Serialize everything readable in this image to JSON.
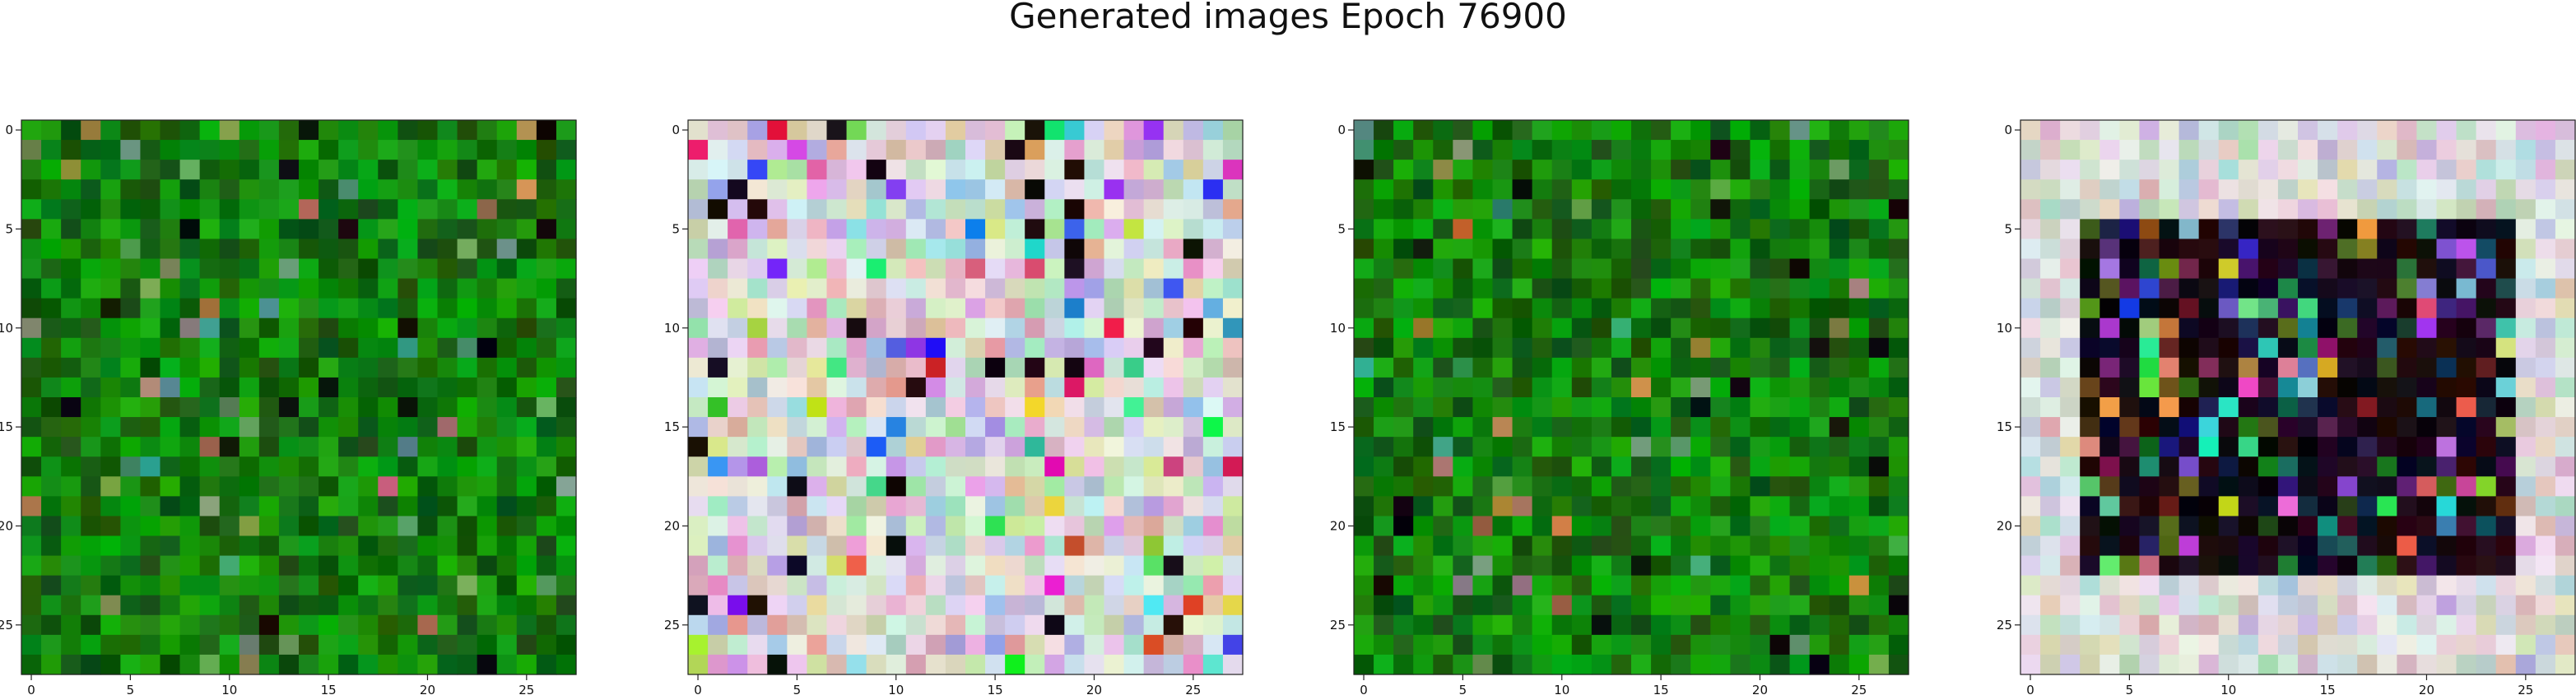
{
  "figure": {
    "title": "Generated images Epoch 76900"
  },
  "chart_data": [
    {
      "type": "heatmap",
      "palette": "green-noise",
      "grid_size": 28,
      "xlim": [
        0,
        27
      ],
      "ylim": [
        27,
        0
      ],
      "x_ticks": [
        0,
        5,
        10,
        15,
        20,
        25
      ],
      "y_ticks": [
        0,
        5,
        10,
        15,
        20,
        25
      ],
      "x_tick_labels": [
        "0",
        "5",
        "10",
        "15",
        "20",
        "25"
      ],
      "y_tick_labels": [
        "0",
        "5",
        "10",
        "15",
        "20",
        "25"
      ],
      "title": "",
      "xlabel": "",
      "ylabel": ""
    },
    {
      "type": "heatmap",
      "palette": "pastel-noise",
      "grid_size": 28,
      "xlim": [
        0,
        27
      ],
      "ylim": [
        27,
        0
      ],
      "x_ticks": [
        0,
        5,
        10,
        15,
        20,
        25
      ],
      "y_ticks": [
        0,
        5,
        10,
        15,
        20,
        25
      ],
      "x_tick_labels": [
        "0",
        "5",
        "10",
        "15",
        "20",
        "25"
      ],
      "y_tick_labels": [
        "0",
        "5",
        "10",
        "15",
        "20",
        "25"
      ],
      "title": "",
      "xlabel": "",
      "ylabel": ""
    },
    {
      "type": "heatmap",
      "palette": "green-noise",
      "grid_size": 28,
      "xlim": [
        0,
        27
      ],
      "ylim": [
        27,
        0
      ],
      "x_ticks": [
        0,
        5,
        10,
        15,
        20,
        25
      ],
      "y_ticks": [
        0,
        5,
        10,
        15,
        20,
        25
      ],
      "x_tick_labels": [
        "0",
        "5",
        "10",
        "15",
        "20",
        "25"
      ],
      "y_tick_labels": [
        "0",
        "5",
        "10",
        "15",
        "20",
        "25"
      ],
      "title": "",
      "xlabel": "",
      "ylabel": ""
    },
    {
      "type": "heatmap",
      "palette": "pastel-border-dark-center",
      "grid_size": 28,
      "xlim": [
        0,
        27
      ],
      "ylim": [
        27,
        0
      ],
      "x_ticks": [
        0,
        5,
        10,
        15,
        20,
        25
      ],
      "y_ticks": [
        0,
        5,
        10,
        15,
        20,
        25
      ],
      "x_tick_labels": [
        "0",
        "5",
        "10",
        "15",
        "20",
        "25"
      ],
      "y_tick_labels": [
        "0",
        "5",
        "10",
        "15",
        "20",
        "25"
      ],
      "title": "",
      "xlabel": "",
      "ylabel": ""
    }
  ]
}
